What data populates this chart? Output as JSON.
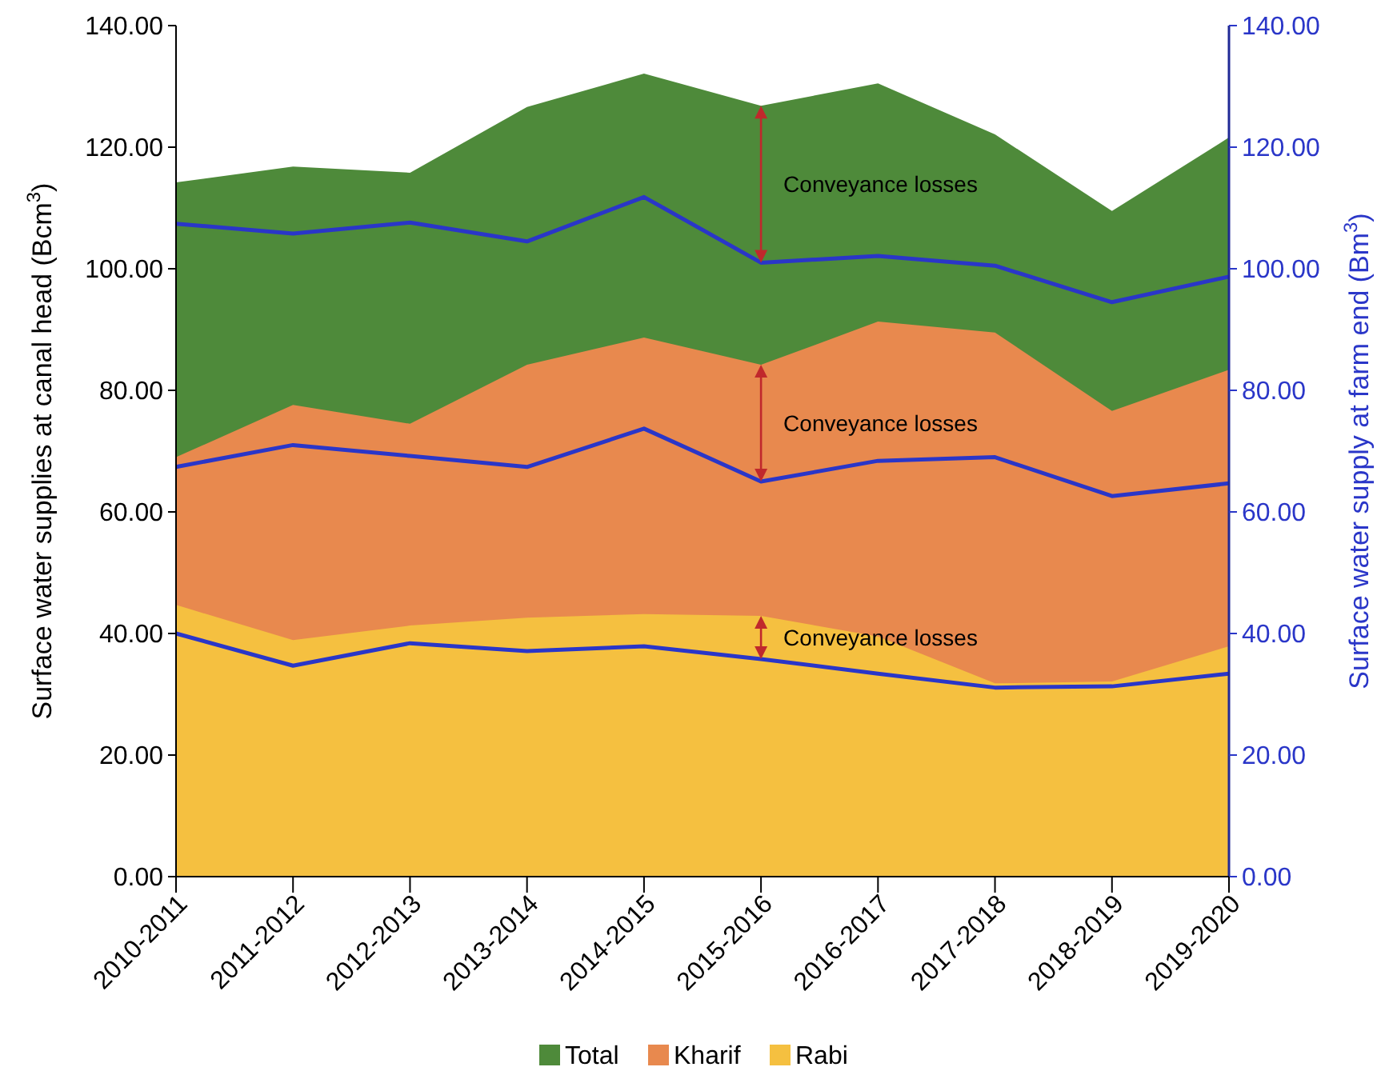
{
  "chart_data": {
    "type": "area",
    "ylabel": "Surface water supplies  at canal head (Bcm$^{3}$)",
    "y2label": "Surface water supply  at farm end (Bm$^{3}$)",
    "categories": [
      "2010-2011",
      "2011-2012",
      "2012-2013",
      "2013-2014",
      "2014-2015",
      "2015-2016",
      "2016-2017",
      "2017-2018",
      "2018-2019",
      "2019-2020"
    ],
    "ylim": [
      0,
      140
    ],
    "yticks": [
      {
        "value": 0,
        "label": "0.00"
      },
      {
        "value": 20,
        "label": "20.00"
      },
      {
        "value": 40,
        "label": "40.00"
      },
      {
        "value": 60,
        "label": "60.00"
      },
      {
        "value": 80,
        "label": "80.00"
      },
      {
        "value": 100,
        "label": "100.00"
      },
      {
        "value": 120,
        "label": "120.00"
      },
      {
        "value": 140,
        "label": "140.00"
      }
    ],
    "y2lim": [
      0,
      140
    ],
    "y2ticks": [
      {
        "value": 0,
        "label": "0.00"
      },
      {
        "value": 20,
        "label": "20.00"
      },
      {
        "value": 40,
        "label": "40.00"
      },
      {
        "value": 60,
        "label": "60.00"
      },
      {
        "value": 80,
        "label": "80.00"
      },
      {
        "value": 100,
        "label": "100.00"
      },
      {
        "value": 120,
        "label": "120.00"
      },
      {
        "value": 140,
        "label": "140.00"
      }
    ],
    "series": [
      {
        "name": "Total",
        "color": "#4e8a3a",
        "values": [
          114.2,
          116.8,
          115.8,
          126.6,
          132.1,
          126.8,
          130.5,
          122.1,
          109.5,
          121.6
        ]
      },
      {
        "name": "Kharif",
        "color": "#e8894e",
        "values": [
          69,
          77.6,
          74.5,
          84.2,
          88.7,
          84.2,
          91.3,
          89.5,
          76.6,
          83.4
        ]
      },
      {
        "name": "Rabi",
        "color": "#f5c040",
        "values": [
          44.7,
          38.9,
          41.3,
          42.6,
          43.2,
          42.9,
          39.5,
          31.8,
          32.1,
          37.9
        ]
      },
      {
        "type": "line",
        "axis": "y2",
        "color": "#2a36c8",
        "values": [
          107.4,
          105.8,
          107.6,
          104.5,
          111.8,
          101,
          102.1,
          100.5,
          94.5,
          98.7
        ]
      },
      {
        "type": "line",
        "axis": "y2",
        "color": "#2a36c8",
        "values": [
          67.4,
          71,
          69.2,
          67.4,
          73.7,
          65,
          68.4,
          69,
          62.6,
          64.7
        ]
      },
      {
        "type": "line",
        "axis": "y2",
        "color": "#2a36c8",
        "values": [
          40,
          34.7,
          38.4,
          37.1,
          37.9,
          35.8,
          33.4,
          31.1,
          31.3,
          33.4
        ]
      }
    ],
    "annotations": [
      "Conveyance losses",
      "Conveyance losses",
      "Conveyance losses"
    ],
    "legend": "bottom",
    "grid": false
  }
}
